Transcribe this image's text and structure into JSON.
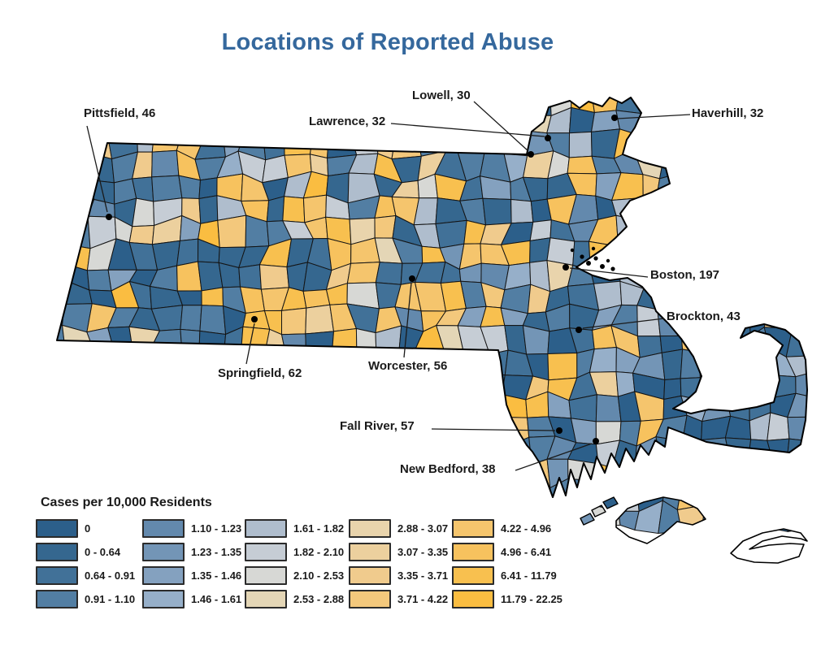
{
  "title": "Locations of Reported Abuse",
  "title_color": "#35689D",
  "map_region": "Massachusetts municipalities choropleth",
  "cities": [
    {
      "id": "pittsfield",
      "name": "Pittsfield",
      "cases": 46,
      "label": "Pittsfield, 46"
    },
    {
      "id": "lawrence",
      "name": "Lawrence",
      "cases": 32,
      "label": "Lawrence, 32"
    },
    {
      "id": "lowell",
      "name": "Lowell",
      "cases": 30,
      "label": "Lowell, 30"
    },
    {
      "id": "haverhill",
      "name": "Haverhill",
      "cases": 32,
      "label": "Haverhill, 32"
    },
    {
      "id": "boston",
      "name": "Boston",
      "cases": 197,
      "label": "Boston, 197"
    },
    {
      "id": "brockton",
      "name": "Brockton",
      "cases": 43,
      "label": "Brockton, 43"
    },
    {
      "id": "springfield",
      "name": "Springfield",
      "cases": 62,
      "label": "Springfield, 62"
    },
    {
      "id": "worcester",
      "name": "Worcester",
      "cases": 56,
      "label": "Worcester, 56"
    },
    {
      "id": "fallriver",
      "name": "Fall River",
      "cases": 57,
      "label": "Fall River, 57"
    },
    {
      "id": "newbedford",
      "name": "New Bedford",
      "cases": 38,
      "label": "New Bedford, 38"
    }
  ],
  "legend": {
    "title": "Cases per 10,000 Residents",
    "columns": [
      [
        {
          "label": "0",
          "color": "#2C5F8A"
        },
        {
          "label": "0 - 0.64",
          "color": "#35678F"
        },
        {
          "label": "0.64 - 0.91",
          "color": "#417198"
        },
        {
          "label": "0.91 - 1.10",
          "color": "#527EA3"
        }
      ],
      [
        {
          "label": "1.10 - 1.23",
          "color": "#6389AD"
        },
        {
          "label": "1.23 - 1.35",
          "color": "#7395B6"
        },
        {
          "label": "1.35 - 1.46",
          "color": "#84A1BF"
        },
        {
          "label": "1.46 - 1.61",
          "color": "#96AFC9"
        }
      ],
      [
        {
          "label": "1.61 - 1.82",
          "color": "#AFBDCD"
        },
        {
          "label": "1.82 - 2.10",
          "color": "#C6CDD5"
        },
        {
          "label": "2.10 - 2.53",
          "color": "#D7D8D5"
        },
        {
          "label": "2.53 - 2.88",
          "color": "#E4D6B6"
        }
      ],
      [
        {
          "label": "2.88 - 3.07",
          "color": "#E9D4AC"
        },
        {
          "label": "3.07 - 3.35",
          "color": "#ECD09E"
        },
        {
          "label": "3.35 - 3.71",
          "color": "#F0CB8D"
        },
        {
          "label": "3.71 - 4.22",
          "color": "#F3C87C"
        }
      ],
      [
        {
          "label": "4.22 - 4.96",
          "color": "#F5C56D"
        },
        {
          "label": "4.96 - 6.41",
          "color": "#F7C25E"
        },
        {
          "label": "6.41 - 11.79",
          "color": "#F8C04F"
        },
        {
          "label": "11.79 - 22.25",
          "color": "#FABD41"
        }
      ]
    ]
  }
}
